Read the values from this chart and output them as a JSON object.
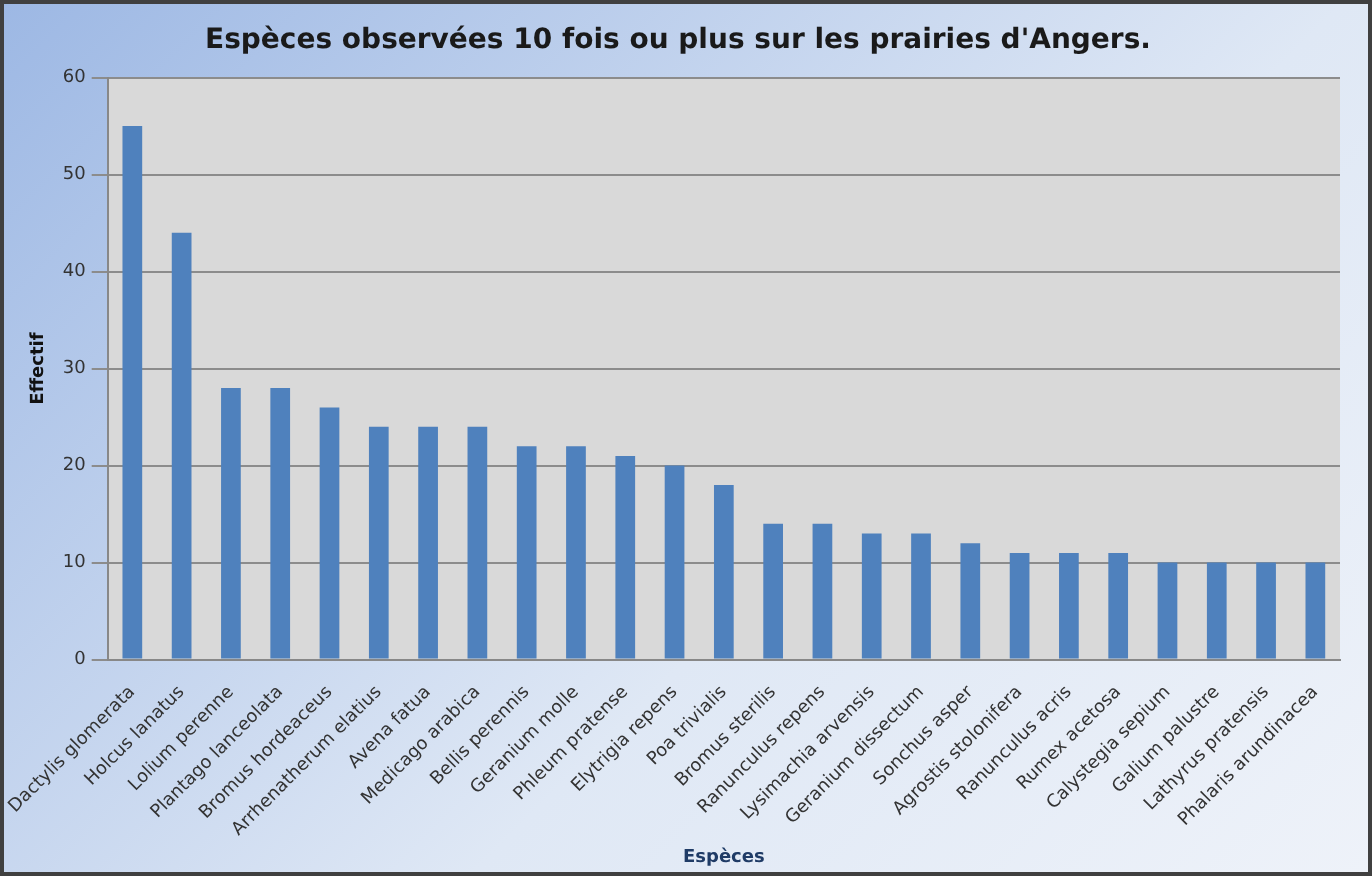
{
  "chart_data": {
    "type": "bar",
    "title": "Espèces observées 10 fois ou plus sur les prairies d'Angers.",
    "xlabel": "Espèces",
    "ylabel": "Effectif",
    "categories": [
      "Dactylis glomerata",
      "Holcus lanatus",
      "Lolium perenne",
      "Plantago lanceolata",
      "Bromus hordeaceus",
      "Arrhenatherum elatius",
      "Avena fatua",
      "Medicago arabica",
      "Bellis perennis",
      "Geranium molle",
      "Phleum pratense",
      "Elytrigia repens",
      "Poa trivialis",
      "Bromus sterilis",
      "Ranunculus repens",
      "Lysimachia arvensis",
      "Geranium dissectum",
      "Sonchus asper",
      "Agrostis stolonifera",
      "Ranunculus acris",
      "Rumex acetosa",
      "Calystegia sepium",
      "Galium palustre",
      "Lathyrus pratensis",
      "Phalaris arundinacea"
    ],
    "values": [
      55,
      44,
      28,
      28,
      26,
      24,
      24,
      24,
      22,
      22,
      21,
      20,
      18,
      14,
      14,
      13,
      13,
      12,
      11,
      11,
      11,
      10,
      10,
      10,
      10
    ],
    "color": "#4f81bd",
    "ylim": [
      0,
      60
    ],
    "yticks": [
      0,
      10,
      20,
      30,
      40,
      50,
      60
    ],
    "grid": "y",
    "legend": false
  }
}
